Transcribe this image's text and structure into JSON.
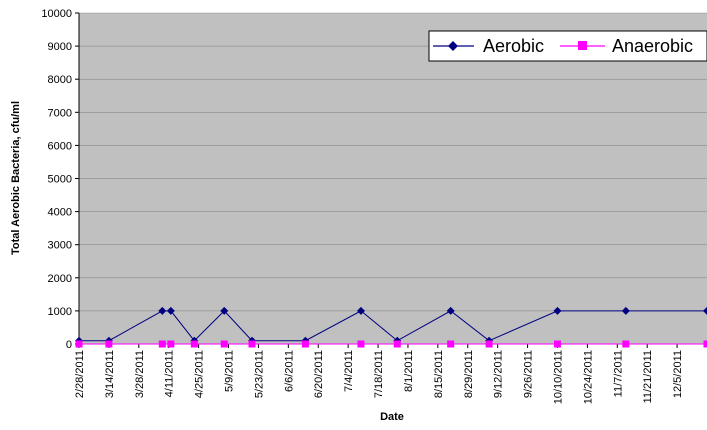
{
  "chart_data": {
    "type": "line",
    "xlabel": "Date",
    "ylabel": "Total Aerobic Bacteria, cfu/ml",
    "ylim": [
      0,
      10000
    ],
    "yticks": [
      0,
      1000,
      2000,
      3000,
      4000,
      5000,
      6000,
      7000,
      8000,
      9000,
      10000
    ],
    "xlim": [
      "2011-02-28",
      "2011-12-19"
    ],
    "xtick_labels": [
      "2/28/2011",
      "3/14/2011",
      "3/28/2011",
      "4/11/2011",
      "4/25/2011",
      "5/9/2011",
      "5/23/2011",
      "6/6/2011",
      "6/20/2011",
      "7/4/2011",
      "7/18/2011",
      "8/1/2011",
      "8/15/2011",
      "8/29/2011",
      "9/12/2011",
      "9/26/2011",
      "10/10/2011",
      "10/24/2011",
      "11/7/2011",
      "11/21/2011",
      "12/5/2011"
    ],
    "grid": "horizontal",
    "legend_position": "top-right",
    "background_color": "#c0c0c0",
    "series": [
      {
        "name": "Aerobic",
        "color": "#000080",
        "marker": "diamond",
        "x": [
          "2011-02-28",
          "2011-03-14",
          "2011-04-08",
          "2011-04-12",
          "2011-04-23",
          "2011-05-07",
          "2011-05-20",
          "2011-06-14",
          "2011-07-10",
          "2011-07-27",
          "2011-08-21",
          "2011-09-08",
          "2011-10-10",
          "2011-11-11",
          "2011-12-19"
        ],
        "values": [
          100,
          100,
          1000,
          1000,
          100,
          1000,
          100,
          100,
          1000,
          100,
          1000,
          100,
          1000,
          1000,
          1000
        ]
      },
      {
        "name": "Anaerobic",
        "color": "#ff00ff",
        "marker": "square",
        "x": [
          "2011-02-28",
          "2011-03-14",
          "2011-04-08",
          "2011-04-12",
          "2011-04-23",
          "2011-05-07",
          "2011-05-20",
          "2011-06-14",
          "2011-07-10",
          "2011-07-27",
          "2011-08-21",
          "2011-09-08",
          "2011-10-10",
          "2011-11-11",
          "2011-12-19"
        ],
        "values": [
          0,
          0,
          0,
          0,
          0,
          0,
          0,
          0,
          0,
          0,
          0,
          0,
          0,
          0,
          0
        ]
      }
    ]
  }
}
